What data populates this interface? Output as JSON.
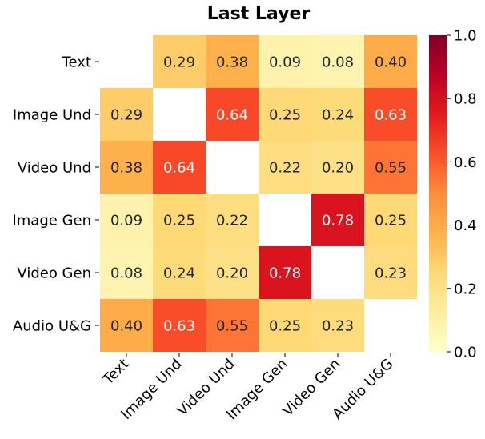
{
  "chart_data": {
    "type": "heatmap",
    "title": "Last Layer",
    "row_labels": [
      "Text",
      "Image Und",
      "Video Und",
      "Image Gen",
      "Video Gen",
      "Audio U&G"
    ],
    "col_labels": [
      "Text",
      "Image Und",
      "Video Und",
      "Image Gen",
      "Video Gen",
      "Audio U&G"
    ],
    "values": [
      [
        null,
        0.29,
        0.38,
        0.09,
        0.08,
        0.4
      ],
      [
        0.29,
        null,
        0.64,
        0.25,
        0.24,
        0.63
      ],
      [
        0.38,
        0.64,
        null,
        0.22,
        0.2,
        0.55
      ],
      [
        0.09,
        0.25,
        0.22,
        null,
        0.78,
        0.25
      ],
      [
        0.08,
        0.24,
        0.2,
        0.78,
        null,
        0.23
      ],
      [
        0.4,
        0.63,
        0.55,
        0.25,
        0.23,
        null
      ]
    ],
    "value_labels": [
      [
        "",
        "0.29",
        "0.38",
        "0.09",
        "0.08",
        "0.40"
      ],
      [
        "0.29",
        "",
        "0.64",
        "0.25",
        "0.24",
        "0.63"
      ],
      [
        "0.38",
        "0.64",
        "",
        "0.22",
        "0.20",
        "0.55"
      ],
      [
        "0.09",
        "0.25",
        "0.22",
        "",
        "0.78",
        "0.25"
      ],
      [
        "0.08",
        "0.24",
        "0.20",
        "0.78",
        "",
        "0.23"
      ],
      [
        "0.40",
        "0.63",
        "0.55",
        "0.25",
        "0.23",
        ""
      ]
    ],
    "colorbar": {
      "range": [
        0.0,
        1.0
      ],
      "ticks": [
        0.0,
        0.2,
        0.4,
        0.6,
        0.8,
        1.0
      ],
      "tick_labels": [
        "0.0",
        "0.2",
        "0.4",
        "0.6",
        "0.8",
        "1.0"
      ],
      "colormap": "YlOrRd"
    }
  }
}
